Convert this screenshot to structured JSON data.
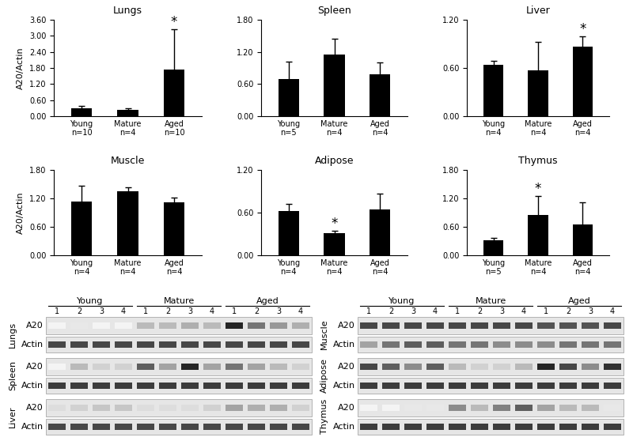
{
  "chart_data": [
    {
      "type": "bar",
      "title": "Lungs",
      "y_label": "A20/Actin",
      "categories": [
        "Young\nn=10",
        "Mature\nn=4",
        "Aged\nn=10"
      ],
      "values": [
        0.3,
        0.25,
        1.75
      ],
      "errors": [
        0.08,
        0.05,
        1.5
      ],
      "color": "#000000",
      "annotations": [
        {
          "index": 2,
          "text": "*"
        }
      ],
      "ylim": [
        0,
        3.6
      ],
      "yticks": [
        {
          "value": 0,
          "label": "0.00"
        },
        {
          "value": 0.6,
          "label": "0.60"
        },
        {
          "value": 1.2,
          "label": "1.20"
        },
        {
          "value": 1.8,
          "label": "1.80"
        },
        {
          "value": 2.4,
          "label": "2.40"
        },
        {
          "value": 3.0,
          "label": "3.00"
        },
        {
          "value": 3.6,
          "label": "3.60"
        }
      ]
    },
    {
      "type": "bar",
      "title": "Spleen",
      "categories": [
        "Young\nn=5",
        "Mature\nn=4",
        "Aged\nn=4"
      ],
      "values": [
        0.7,
        1.15,
        0.78
      ],
      "errors": [
        0.32,
        0.3,
        0.23
      ],
      "color": "#000000",
      "ylim": [
        0,
        1.8
      ],
      "yticks": [
        {
          "value": 0,
          "label": "0.00"
        },
        {
          "value": 0.6,
          "label": "0.60"
        },
        {
          "value": 1.2,
          "label": "1.20"
        },
        {
          "value": 1.8,
          "label": "1.80"
        }
      ]
    },
    {
      "type": "bar",
      "title": "Liver",
      "categories": [
        "Young\nn=4",
        "Mature\nn=4",
        "Aged\nn=4"
      ],
      "values": [
        0.64,
        0.57,
        0.87
      ],
      "errors": [
        0.05,
        0.35,
        0.12
      ],
      "color": "#000000",
      "annotations": [
        {
          "index": 2,
          "text": "*"
        }
      ],
      "ylim": [
        0,
        1.2
      ],
      "yticks": [
        {
          "value": 0,
          "label": "0.00"
        },
        {
          "value": 0.6,
          "label": "0.60"
        },
        {
          "value": 1.2,
          "label": "1.20"
        }
      ]
    },
    {
      "type": "bar",
      "title": "Muscle",
      "y_label": "A20/Actin",
      "categories": [
        "Young\nn=4",
        "Mature\nn=4",
        "Aged\nn=4"
      ],
      "values": [
        1.13,
        1.35,
        1.11
      ],
      "errors": [
        0.33,
        0.08,
        0.1
      ],
      "color": "#000000",
      "ylim": [
        0,
        1.8
      ],
      "yticks": [
        {
          "value": 0,
          "label": "0.00"
        },
        {
          "value": 0.6,
          "label": "0.60"
        },
        {
          "value": 1.2,
          "label": "1.20"
        },
        {
          "value": 1.8,
          "label": "1.80"
        }
      ]
    },
    {
      "type": "bar",
      "title": "Adipose",
      "categories": [
        "Young\nn=4",
        "Mature\nn=4",
        "Aged\nn=4"
      ],
      "values": [
        0.62,
        0.31,
        0.65
      ],
      "errors": [
        0.1,
        0.03,
        0.22
      ],
      "color": "#000000",
      "annotations": [
        {
          "index": 1,
          "text": "*"
        }
      ],
      "ylim": [
        0,
        1.2
      ],
      "yticks": [
        {
          "value": 0,
          "label": "0.00"
        },
        {
          "value": 0.6,
          "label": "0.60"
        },
        {
          "value": 1.2,
          "label": "1.20"
        }
      ]
    },
    {
      "type": "bar",
      "title": "Thymus",
      "categories": [
        "Young\nn=5",
        "Mature\nn=4",
        "Aged\nn=4"
      ],
      "values": [
        0.32,
        0.85,
        0.65
      ],
      "errors": [
        0.04,
        0.4,
        0.47
      ],
      "color": "#000000",
      "annotations": [
        {
          "index": 1,
          "text": "*"
        }
      ],
      "ylim": [
        0,
        1.8
      ],
      "yticks": [
        {
          "value": 0,
          "label": "0.00"
        },
        {
          "value": 0.6,
          "label": "0.60"
        },
        {
          "value": 1.2,
          "label": "1.20"
        },
        {
          "value": 1.8,
          "label": "1.80"
        }
      ]
    }
  ],
  "blots": {
    "groups": [
      "Young",
      "Mature",
      "Aged"
    ],
    "lanes": [
      "1",
      "2",
      "3",
      "4"
    ],
    "panels": [
      {
        "tissue": "Lungs",
        "rows": [
          {
            "label": "A20",
            "intensity": [
              0.05,
              0.1,
              0.05,
              0.05,
              0.3,
              0.3,
              0.35,
              0.3,
              0.95,
              0.6,
              0.45,
              0.35
            ]
          },
          {
            "label": "Actin",
            "intensity": [
              0.8,
              0.8,
              0.8,
              0.8,
              0.8,
              0.8,
              0.8,
              0.8,
              0.8,
              0.8,
              0.8,
              0.8
            ]
          }
        ]
      },
      {
        "tissue": "Spleen",
        "rows": [
          {
            "label": "A20",
            "intensity": [
              0.05,
              0.3,
              0.2,
              0.2,
              0.7,
              0.4,
              0.95,
              0.4,
              0.6,
              0.4,
              0.3,
              0.2
            ]
          },
          {
            "label": "Actin",
            "intensity": [
              0.85,
              0.85,
              0.85,
              0.85,
              0.85,
              0.85,
              0.85,
              0.85,
              0.85,
              0.85,
              0.85,
              0.85
            ]
          }
        ]
      },
      {
        "tissue": "Liver",
        "rows": [
          {
            "label": "A20",
            "intensity": [
              0.15,
              0.2,
              0.25,
              0.25,
              0.15,
              0.15,
              0.15,
              0.2,
              0.4,
              0.35,
              0.35,
              0.2
            ]
          },
          {
            "label": "Actin",
            "intensity": [
              0.8,
              0.8,
              0.8,
              0.8,
              0.8,
              0.8,
              0.8,
              0.8,
              0.8,
              0.8,
              0.8,
              0.8
            ]
          }
        ]
      },
      {
        "tissue": "Muscle",
        "rows": [
          {
            "label": "A20",
            "intensity": [
              0.8,
              0.8,
              0.8,
              0.8,
              0.8,
              0.8,
              0.8,
              0.8,
              0.75,
              0.75,
              0.75,
              0.8
            ]
          },
          {
            "label": "Actin",
            "intensity": [
              0.4,
              0.6,
              0.7,
              0.7,
              0.6,
              0.6,
              0.5,
              0.5,
              0.5,
              0.6,
              0.6,
              0.6
            ]
          }
        ]
      },
      {
        "tissue": "Adipose",
        "rows": [
          {
            "label": "A20",
            "intensity": [
              0.8,
              0.7,
              0.5,
              0.7,
              0.3,
              0.2,
              0.2,
              0.3,
              0.95,
              0.8,
              0.5,
              0.9
            ]
          },
          {
            "label": "Actin",
            "intensity": [
              0.85,
              0.85,
              0.85,
              0.85,
              0.85,
              0.85,
              0.85,
              0.85,
              0.85,
              0.85,
              0.85,
              0.85
            ]
          }
        ]
      },
      {
        "tissue": "Thymus",
        "rows": [
          {
            "label": "A20",
            "intensity": [
              0.05,
              0.05,
              0.1,
              0.1,
              0.5,
              0.3,
              0.55,
              0.7,
              0.4,
              0.3,
              0.3,
              0.1
            ]
          },
          {
            "label": "Actin",
            "intensity": [
              0.85,
              0.85,
              0.85,
              0.85,
              0.85,
              0.85,
              0.85,
              0.85,
              0.85,
              0.85,
              0.85,
              0.85
            ]
          }
        ]
      }
    ]
  }
}
